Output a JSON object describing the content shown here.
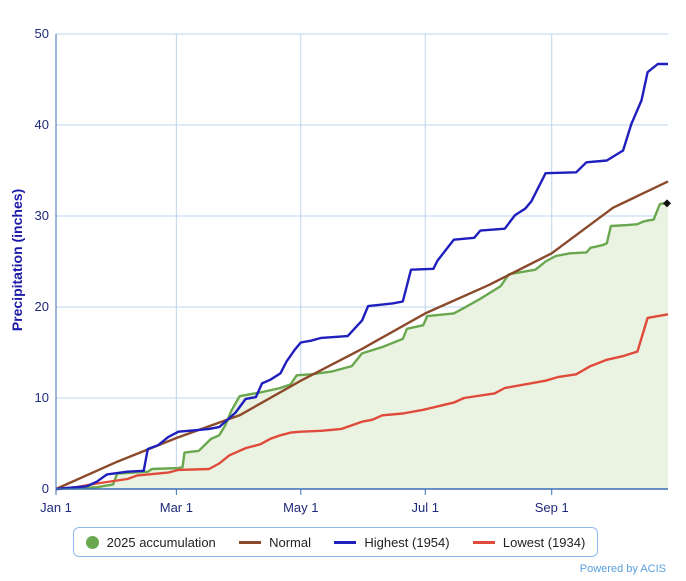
{
  "chart_data": {
    "type": "line",
    "ylabel": "Precipitation (inches)",
    "ylim": [
      0,
      50
    ],
    "y_ticks": [
      "0",
      "10",
      "20",
      "30",
      "40",
      "50"
    ],
    "x_ticks": [
      "Jan 1",
      "Mar 1",
      "May 1",
      "Jul 1",
      "Sep 1"
    ],
    "x_tick_days": [
      0,
      59,
      120,
      181,
      243
    ],
    "xlim_days": [
      0,
      300
    ],
    "grid": true,
    "legend_position": "bottom",
    "series": [
      {
        "name": "2025 accumulation",
        "color": "#6aa84f",
        "fill": "#eaf3e2",
        "marker": "dot",
        "points": [
          [
            0,
            0
          ],
          [
            20,
            0.2
          ],
          [
            28,
            0.5
          ],
          [
            30,
            1.7
          ],
          [
            45,
            1.9
          ],
          [
            47,
            2.2
          ],
          [
            60,
            2.3
          ],
          [
            62,
            2.4
          ],
          [
            63,
            4.0
          ],
          [
            70,
            4.2
          ],
          [
            76,
            5.5
          ],
          [
            80,
            5.9
          ],
          [
            83,
            7.0
          ],
          [
            86,
            8.6
          ],
          [
            90,
            10.2
          ],
          [
            100,
            10.6
          ],
          [
            110,
            11.1
          ],
          [
            115,
            11.5
          ],
          [
            118,
            12.5
          ],
          [
            125,
            12.6
          ],
          [
            135,
            12.9
          ],
          [
            145,
            13.5
          ],
          [
            150,
            14.9
          ],
          [
            160,
            15.6
          ],
          [
            170,
            16.5
          ],
          [
            172,
            17.6
          ],
          [
            180,
            18.0
          ],
          [
            182,
            19.0
          ],
          [
            195,
            19.3
          ],
          [
            200,
            19.9
          ],
          [
            208,
            20.9
          ],
          [
            218,
            22.3
          ],
          [
            222,
            23.6
          ],
          [
            235,
            24.1
          ],
          [
            240,
            25.0
          ],
          [
            245,
            25.6
          ],
          [
            252,
            25.9
          ],
          [
            260,
            26.0
          ],
          [
            262,
            26.5
          ],
          [
            268,
            26.8
          ],
          [
            270,
            27.0
          ],
          [
            272,
            28.9
          ],
          [
            280,
            29.0
          ],
          [
            285,
            29.1
          ],
          [
            288,
            29.4
          ],
          [
            290,
            29.5
          ],
          [
            293,
            29.6
          ],
          [
            296,
            31.3
          ],
          [
            300,
            31.5
          ]
        ]
      },
      {
        "name": "Normal",
        "color": "#8b4a2b",
        "points": [
          [
            0,
            0
          ],
          [
            30,
            3.0
          ],
          [
            59,
            5.6
          ],
          [
            90,
            8.1
          ],
          [
            120,
            11.9
          ],
          [
            150,
            15.4
          ],
          [
            181,
            19.3
          ],
          [
            212,
            22.4
          ],
          [
            243,
            25.9
          ],
          [
            273,
            30.9
          ],
          [
            300,
            33.8
          ]
        ]
      },
      {
        "name": "Highest (1954)",
        "color": "#1f1fbd",
        "points": [
          [
            0,
            0
          ],
          [
            15,
            0.3
          ],
          [
            20,
            0.8
          ],
          [
            25,
            1.6
          ],
          [
            35,
            1.9
          ],
          [
            43,
            2.0
          ],
          [
            45,
            4.4
          ],
          [
            50,
            4.8
          ],
          [
            55,
            5.7
          ],
          [
            60,
            6.3
          ],
          [
            70,
            6.5
          ],
          [
            75,
            6.6
          ],
          [
            80,
            6.8
          ],
          [
            88,
            8.4
          ],
          [
            93,
            9.9
          ],
          [
            98,
            10.1
          ],
          [
            101,
            11.6
          ],
          [
            105,
            12.0
          ],
          [
            110,
            12.7
          ],
          [
            113,
            14.0
          ],
          [
            117,
            15.3
          ],
          [
            120,
            16.1
          ],
          [
            125,
            16.3
          ],
          [
            130,
            16.6
          ],
          [
            143,
            16.8
          ],
          [
            150,
            18.5
          ],
          [
            153,
            20.1
          ],
          [
            165,
            20.4
          ],
          [
            170,
            20.6
          ],
          [
            174,
            24.1
          ],
          [
            185,
            24.2
          ],
          [
            187,
            25.1
          ],
          [
            195,
            27.4
          ],
          [
            205,
            27.6
          ],
          [
            208,
            28.4
          ],
          [
            220,
            28.6
          ],
          [
            225,
            30.1
          ],
          [
            230,
            30.8
          ],
          [
            233,
            31.6
          ],
          [
            240,
            34.7
          ],
          [
            255,
            34.8
          ],
          [
            260,
            35.9
          ],
          [
            270,
            36.1
          ],
          [
            278,
            37.2
          ],
          [
            282,
            40.1
          ],
          [
            287,
            42.7
          ],
          [
            290,
            45.8
          ],
          [
            295,
            46.7
          ],
          [
            300,
            46.7
          ]
        ]
      },
      {
        "name": "Lowest (1934)",
        "color": "#e04a3b",
        "points": [
          [
            0,
            0
          ],
          [
            10,
            0.2
          ],
          [
            20,
            0.6
          ],
          [
            35,
            1.1
          ],
          [
            40,
            1.5
          ],
          [
            55,
            1.8
          ],
          [
            60,
            2.1
          ],
          [
            75,
            2.2
          ],
          [
            80,
            2.8
          ],
          [
            85,
            3.7
          ],
          [
            93,
            4.5
          ],
          [
            100,
            4.9
          ],
          [
            105,
            5.5
          ],
          [
            110,
            5.9
          ],
          [
            115,
            6.2
          ],
          [
            120,
            6.3
          ],
          [
            130,
            6.4
          ],
          [
            140,
            6.6
          ],
          [
            150,
            7.4
          ],
          [
            155,
            7.6
          ],
          [
            160,
            8.1
          ],
          [
            170,
            8.3
          ],
          [
            180,
            8.7
          ],
          [
            195,
            9.5
          ],
          [
            200,
            10.0
          ],
          [
            215,
            10.5
          ],
          [
            220,
            11.1
          ],
          [
            240,
            11.9
          ],
          [
            246,
            12.3
          ],
          [
            255,
            12.6
          ],
          [
            262,
            13.5
          ],
          [
            270,
            14.2
          ],
          [
            278,
            14.6
          ],
          [
            285,
            15.1
          ],
          [
            290,
            18.8
          ],
          [
            300,
            19.2
          ]
        ]
      }
    ],
    "last_value_marker": {
      "day": 300,
      "value": 31.5,
      "color": "#111111"
    }
  },
  "legend": {
    "items": [
      {
        "label": "2025 accumulation",
        "color": "#6aa84f",
        "shape": "dot"
      },
      {
        "label": "Normal",
        "color": "#8b4a2b",
        "shape": "line"
      },
      {
        "label": "Highest (1954)",
        "color": "#1f1fbd",
        "shape": "line"
      },
      {
        "label": "Lowest (1934)",
        "color": "#e04a3b",
        "shape": "line"
      }
    ]
  },
  "credit": "Powered by ACIS"
}
